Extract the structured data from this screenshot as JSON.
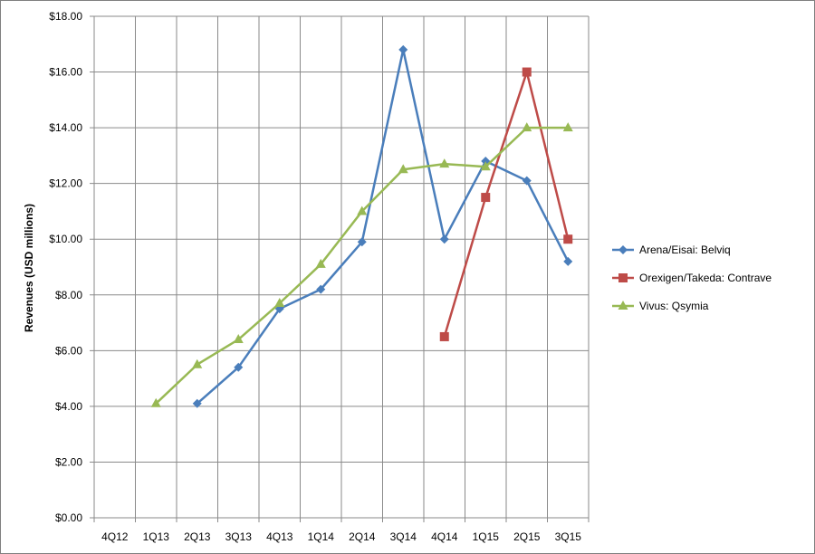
{
  "chart_data": {
    "type": "line",
    "title": "",
    "xlabel": "",
    "ylabel": "Revenues (USD millions)",
    "ylim": [
      0,
      18
    ],
    "ytick_step": 2,
    "grid": true,
    "legend_position": "right",
    "categories": [
      "4Q12",
      "1Q13",
      "2Q13",
      "3Q13",
      "4Q13",
      "1Q14",
      "2Q14",
      "3Q14",
      "4Q14",
      "1Q15",
      "2Q15",
      "3Q15"
    ],
    "ytick_labels": [
      "$0.00",
      "$2.00",
      "$4.00",
      "$6.00",
      "$8.00",
      "$10.00",
      "$12.00",
      "$14.00",
      "$16.00",
      "$18.00"
    ],
    "series": [
      {
        "name": "Arena/Eisai: Belviq",
        "color": "#4a7ebb",
        "marker": "diamond",
        "values": [
          null,
          null,
          4.1,
          5.4,
          7.5,
          8.2,
          9.9,
          16.8,
          10.0,
          12.8,
          12.1,
          9.2
        ]
      },
      {
        "name": "Orexigen/Takeda: Contrave",
        "color": "#be4b48",
        "marker": "square",
        "values": [
          null,
          null,
          null,
          null,
          null,
          null,
          null,
          null,
          6.5,
          11.5,
          16.0,
          10.0
        ]
      },
      {
        "name": "Vivus: Qsymia",
        "color": "#98b954",
        "marker": "triangle",
        "values": [
          null,
          4.1,
          5.5,
          6.4,
          7.7,
          9.1,
          11.0,
          12.5,
          12.7,
          12.6,
          14.0,
          14.0
        ]
      }
    ]
  }
}
